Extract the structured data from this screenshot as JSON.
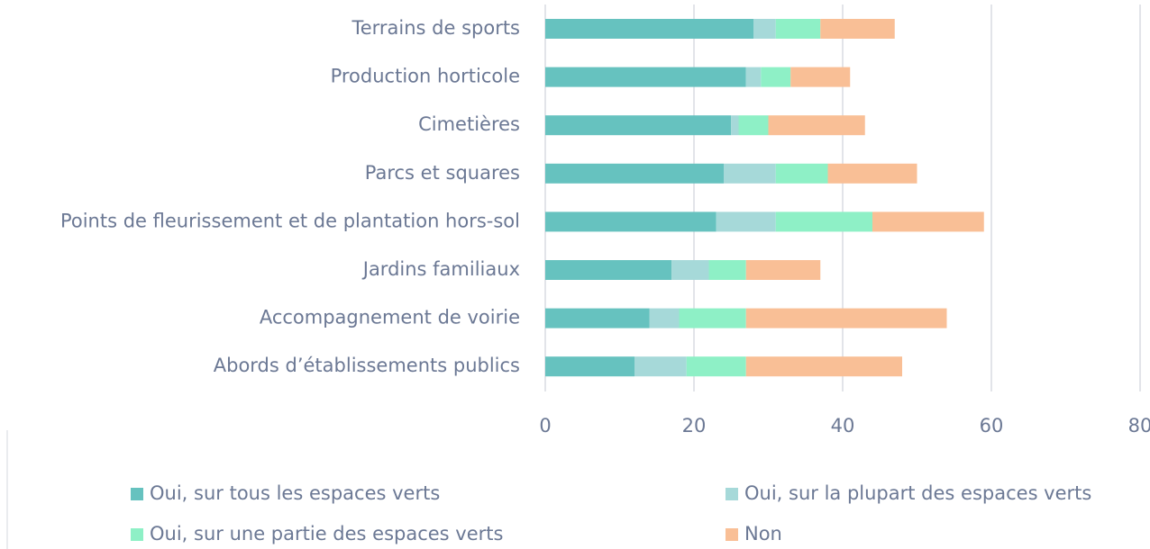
{
  "chart_data": {
    "type": "stacked_bar_horizontal",
    "categories": [
      "Terrains de sports",
      "Production horticole",
      "Cimetières",
      "Parcs et squares",
      "Points de fleurissement et de plantation hors-sol",
      "Jardins familiaux",
      "Accompagnement de voirie",
      "Abords d’établissements publics"
    ],
    "series": [
      {
        "name": "Oui, sur tous les espaces verts",
        "color": "#66c2bf",
        "values": [
          28,
          27,
          25,
          24,
          23,
          17,
          14,
          12
        ]
      },
      {
        "name": "Oui, sur la plupart des espaces verts",
        "color": "#a6d9d9",
        "values": [
          3,
          2,
          1,
          7,
          8,
          5,
          4,
          7
        ]
      },
      {
        "name": "Oui, sur une partie des espaces verts",
        "color": "#8ef0c6",
        "values": [
          6,
          4,
          4,
          7,
          13,
          5,
          9,
          8
        ]
      },
      {
        "name": "Non",
        "color": "#f9bf96",
        "values": [
          10,
          8,
          13,
          12,
          15,
          10,
          27,
          21
        ]
      }
    ],
    "xlim": [
      0,
      80
    ],
    "xticks": [
      0,
      20,
      40,
      60,
      80
    ],
    "grid": true
  }
}
